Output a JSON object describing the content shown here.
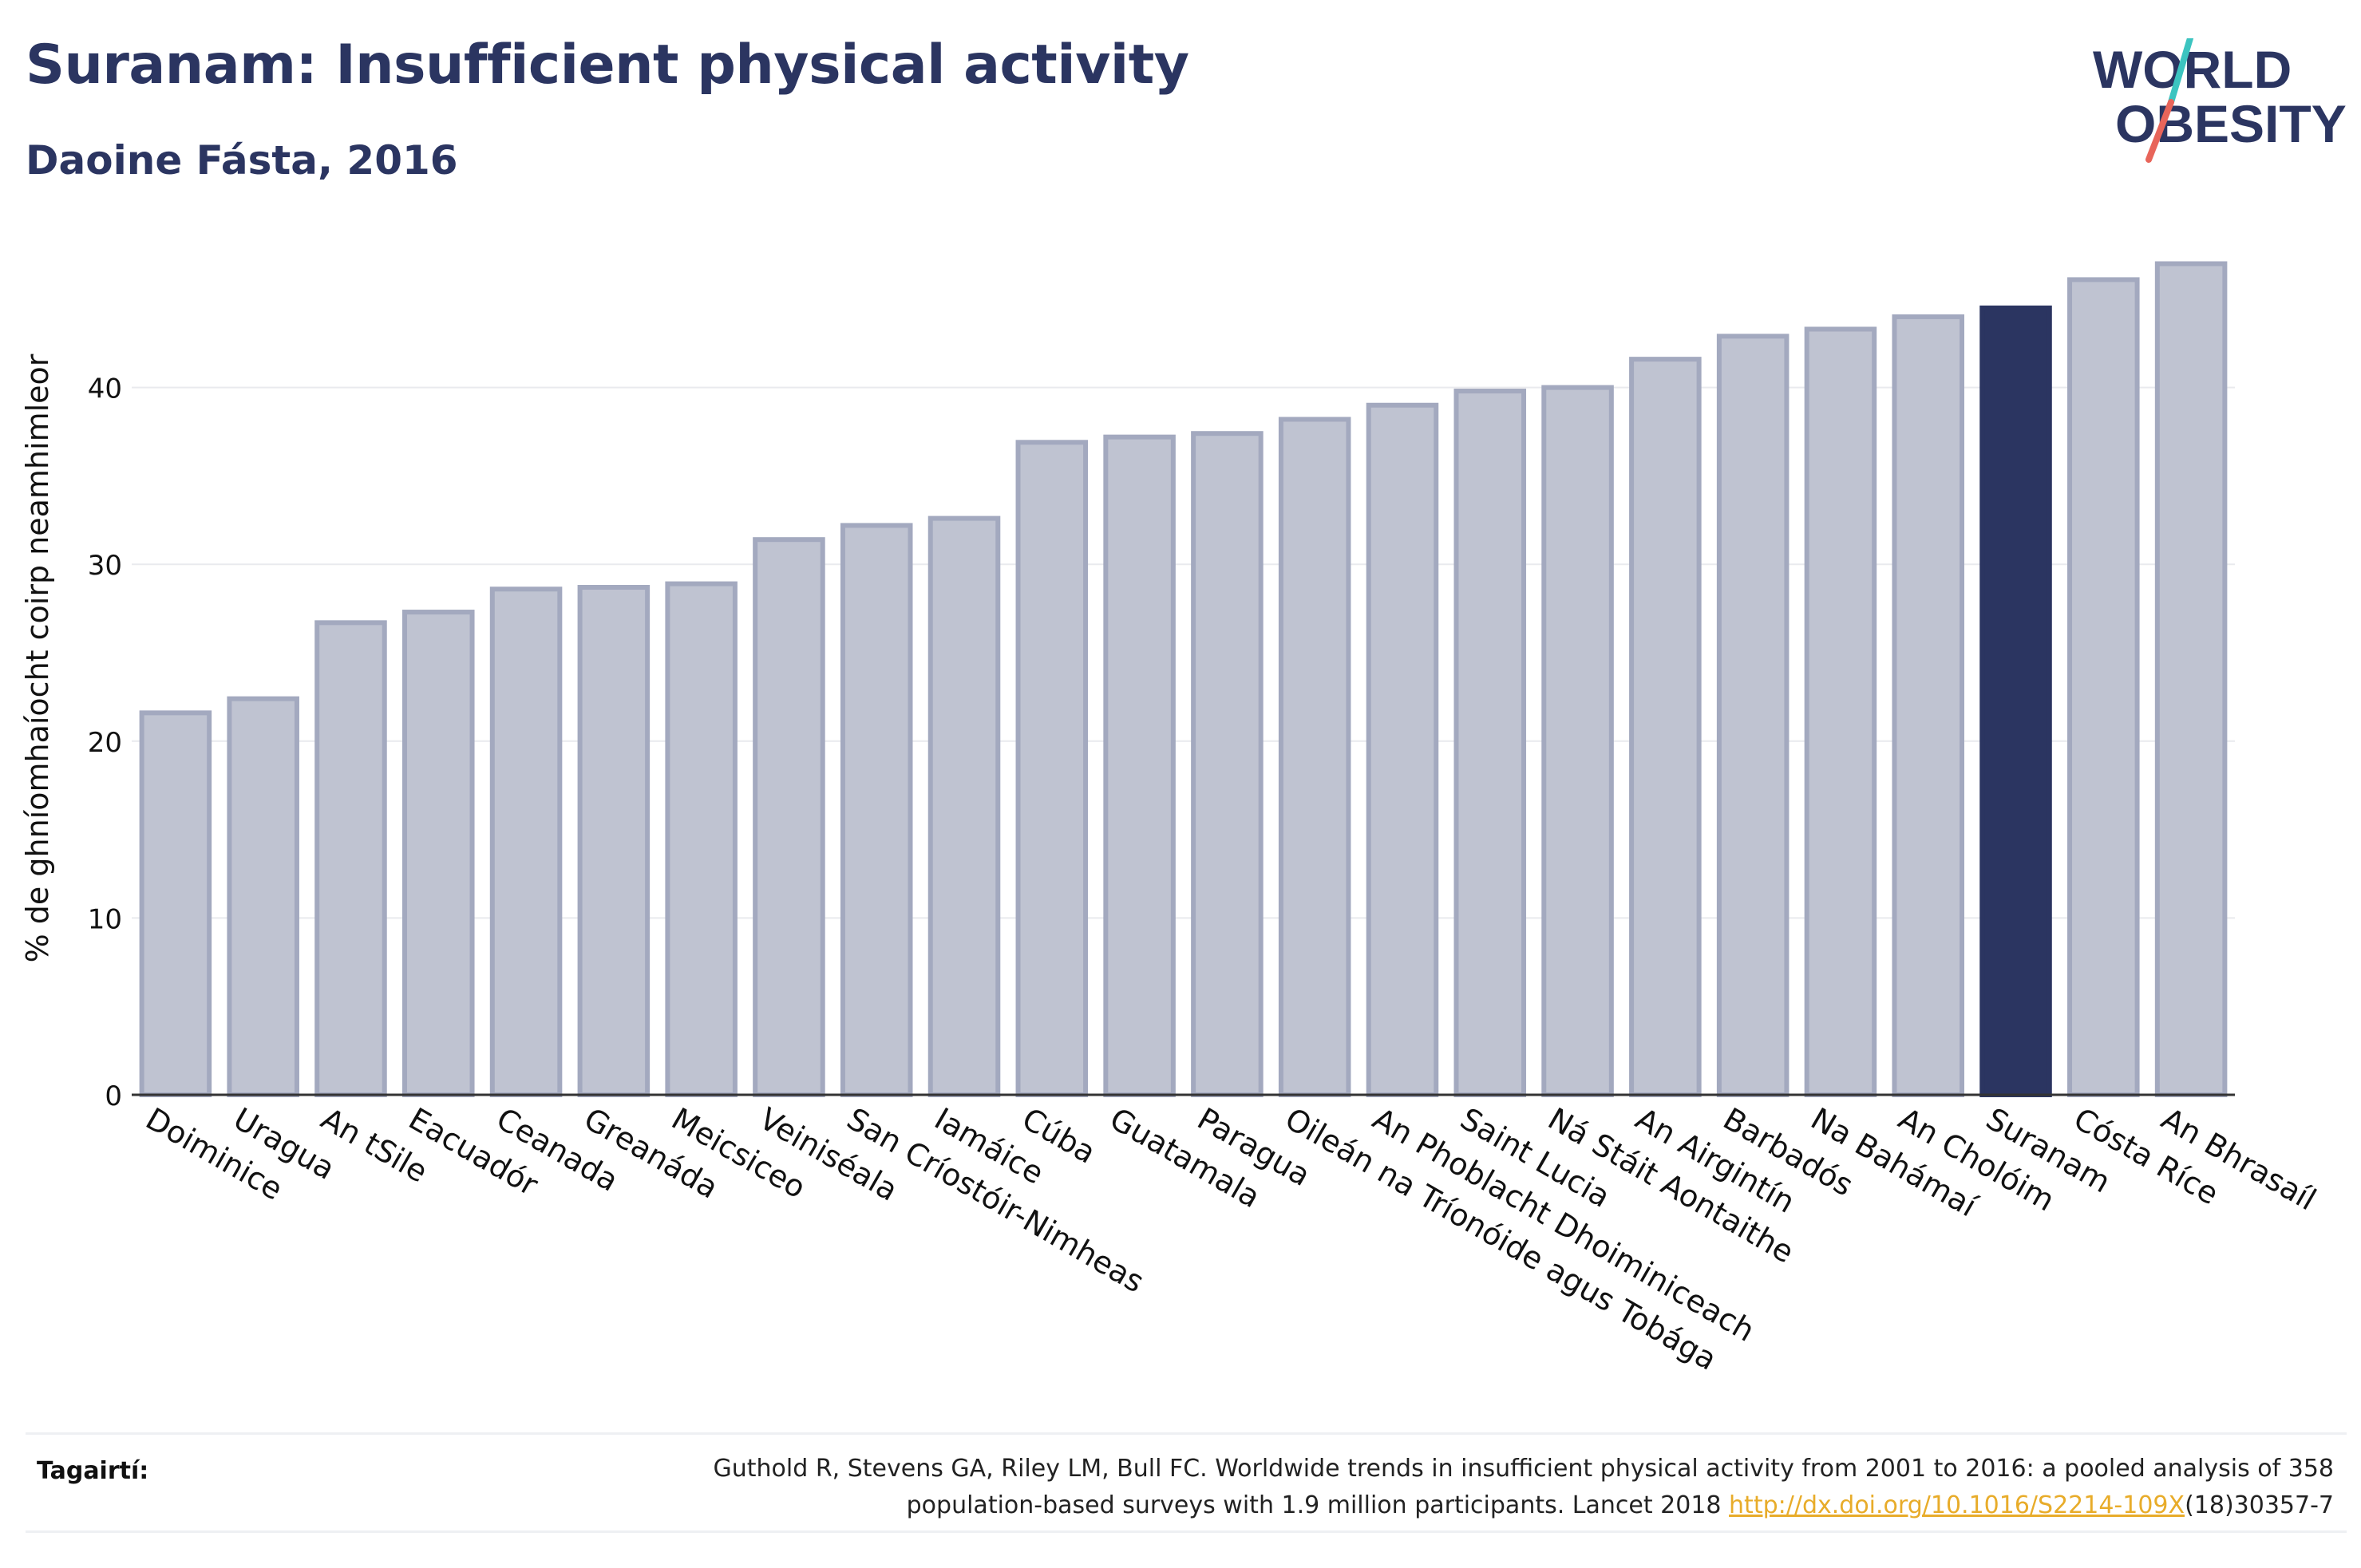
{
  "header": {
    "title": "Suranam: Insufficient physical activity",
    "subtitle": "Daoine Fásta, 2016"
  },
  "logo": {
    "line1": "WORLD",
    "line2": "OBESITY"
  },
  "colors": {
    "bar_fill": "#bfc3d1",
    "bar_stroke": "#a3a9bf",
    "highlight": "#2b3561",
    "grid": "#e9eaee",
    "logo_slash_top": "#3cc4c0",
    "logo_slash_bottom": "#e8655a",
    "link": "#e8ac2a"
  },
  "chart_data": {
    "type": "bar",
    "categories": [
      "Doiminice",
      "Uragua",
      "An tSile",
      "Eacuadór",
      "Ceanada",
      "Greanáda",
      "Meicsiceo",
      "Veiniséala",
      "San Críostóir-Nimheas",
      "Iamáice",
      "Cúba",
      "Guatamala",
      "Paragua",
      "Oileán na Tríonóide agus Tobága",
      "An Phoblacht Dhoiminiceach",
      "Saint Lucia",
      "Ná Stáit Aontaithe",
      "An Airgintín",
      "Barbadós",
      "Na Bahámaí",
      "An Cholóim",
      "Suranam",
      "Cósta Ríce",
      "An Bhrasaíl"
    ],
    "values": [
      21.6,
      22.4,
      26.7,
      27.3,
      28.6,
      28.7,
      28.9,
      31.4,
      32.2,
      32.6,
      36.9,
      37.2,
      37.4,
      38.2,
      39.0,
      39.8,
      40.0,
      41.6,
      42.9,
      43.3,
      44.0,
      44.5,
      46.1,
      47.0
    ],
    "highlight": "Suranam",
    "ylabel": "% de ghníomhaíocht coirp neamhimleor",
    "xlabel": "",
    "ylim": [
      0,
      50
    ],
    "yticks": [
      0,
      10,
      20,
      30,
      40
    ],
    "grid": true
  },
  "references": {
    "label": "Tagairtí:",
    "text_line1": "Guthold R, Stevens GA, Riley LM, Bull FC. Worldwide trends in insufficient physical activity from 2001 to 2016: a pooled analysis of 358",
    "text_line2_start": "population-based surveys with 1.9 million participants. Lancet 2018 ",
    "link_text": "http://dx.doi.org/10.1016/S2214-109X",
    "text_line2_end": "(18)30357-7"
  }
}
